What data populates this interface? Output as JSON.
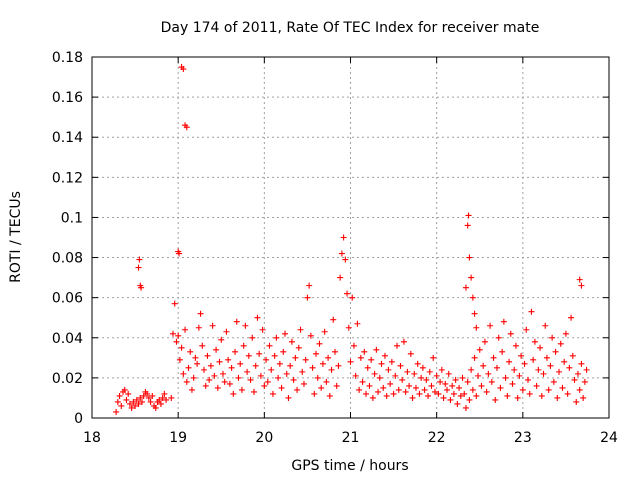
{
  "chart_data": {
    "type": "scatter",
    "title": "Day 174 of 2011, Rate Of TEC Index for receiver mate",
    "xlabel": "GPS time / hours",
    "ylabel": "ROTI / TECUs",
    "xlim": [
      18,
      24
    ],
    "ylim": [
      0,
      0.18
    ],
    "x_ticks": [
      18,
      19,
      20,
      21,
      22,
      23,
      24
    ],
    "x_tick_labels": [
      "18",
      "19",
      "20",
      "21",
      "22",
      "23",
      "24"
    ],
    "y_ticks": [
      0,
      0.02,
      0.04,
      0.06,
      0.08,
      0.1,
      0.12,
      0.14,
      0.16,
      0.18
    ],
    "y_tick_labels": [
      "0",
      "0.02",
      "0.04",
      "0.06",
      "0.08",
      "0.1",
      "0.12",
      "0.14",
      "0.16",
      "0.18"
    ],
    "grid": true,
    "marker": "+",
    "marker_color": "#ff0000",
    "series": [
      {
        "name": "ROTI",
        "points": [
          [
            18.28,
            0.003
          ],
          [
            18.3,
            0.008
          ],
          [
            18.32,
            0.011
          ],
          [
            18.34,
            0.006
          ],
          [
            18.36,
            0.013
          ],
          [
            18.38,
            0.014
          ],
          [
            18.4,
            0.009
          ],
          [
            18.42,
            0.012
          ],
          [
            18.44,
            0.007
          ],
          [
            18.46,
            0.005
          ],
          [
            18.48,
            0.008
          ],
          [
            18.5,
            0.006
          ],
          [
            18.52,
            0.009
          ],
          [
            18.54,
            0.007
          ],
          [
            18.56,
            0.01
          ],
          [
            18.58,
            0.008
          ],
          [
            18.6,
            0.011
          ],
          [
            18.62,
            0.013
          ],
          [
            18.64,
            0.012
          ],
          [
            18.66,
            0.01
          ],
          [
            18.68,
            0.008
          ],
          [
            18.7,
            0.011
          ],
          [
            18.72,
            0.006
          ],
          [
            18.74,
            0.005
          ],
          [
            18.76,
            0.008
          ],
          [
            18.78,
            0.009
          ],
          [
            18.8,
            0.007
          ],
          [
            18.82,
            0.01
          ],
          [
            18.84,
            0.012
          ],
          [
            18.86,
            0.009
          ],
          [
            18.54,
            0.075
          ],
          [
            18.55,
            0.079
          ],
          [
            18.56,
            0.066
          ],
          [
            18.57,
            0.065
          ],
          [
            18.92,
            0.01
          ],
          [
            18.94,
            0.042
          ],
          [
            18.96,
            0.057
          ],
          [
            18.98,
            0.038
          ],
          [
            19.0,
            0.041
          ],
          [
            19.02,
            0.029
          ],
          [
            19.04,
            0.035
          ],
          [
            19.06,
            0.022
          ],
          [
            19.08,
            0.044
          ],
          [
            19.1,
            0.018
          ],
          [
            19.12,
            0.025
          ],
          [
            19.14,
            0.033
          ],
          [
            19.16,
            0.014
          ],
          [
            19.18,
            0.02
          ],
          [
            19.2,
            0.03
          ],
          [
            19.22,
            0.027
          ],
          [
            19.24,
            0.045
          ],
          [
            19.26,
            0.052
          ],
          [
            19.28,
            0.036
          ],
          [
            19.3,
            0.024
          ],
          [
            19.32,
            0.016
          ],
          [
            19.34,
            0.031
          ],
          [
            19.36,
            0.019
          ],
          [
            19.38,
            0.026
          ],
          [
            19.4,
            0.046
          ],
          [
            19.42,
            0.021
          ],
          [
            19.44,
            0.034
          ],
          [
            19.46,
            0.015
          ],
          [
            19.48,
            0.028
          ],
          [
            19.5,
            0.039
          ],
          [
            19.52,
            0.022
          ],
          [
            19.54,
            0.018
          ],
          [
            19.56,
            0.043
          ],
          [
            19.58,
            0.029
          ],
          [
            19.6,
            0.017
          ],
          [
            19.62,
            0.025
          ],
          [
            19.64,
            0.012
          ],
          [
            19.66,
            0.033
          ],
          [
            19.68,
            0.048
          ],
          [
            19.7,
            0.02
          ],
          [
            19.72,
            0.027
          ],
          [
            19.74,
            0.014
          ],
          [
            19.76,
            0.036
          ],
          [
            19.78,
            0.046
          ],
          [
            19.8,
            0.023
          ],
          [
            19.82,
            0.031
          ],
          [
            19.84,
            0.019
          ],
          [
            19.86,
            0.04
          ],
          [
            19.88,
            0.013
          ],
          [
            19.9,
            0.026
          ],
          [
            19.92,
            0.05
          ],
          [
            19.94,
            0.032
          ],
          [
            19.96,
            0.021
          ],
          [
            19.98,
            0.044
          ],
          [
            20.0,
            0.016
          ],
          [
            19.0,
            0.083
          ],
          [
            19.01,
            0.082
          ],
          [
            19.04,
            0.175
          ],
          [
            19.06,
            0.174
          ],
          [
            19.08,
            0.146
          ],
          [
            19.1,
            0.145
          ],
          [
            20.02,
            0.029
          ],
          [
            20.04,
            0.018
          ],
          [
            20.06,
            0.036
          ],
          [
            20.08,
            0.024
          ],
          [
            20.1,
            0.012
          ],
          [
            20.12,
            0.031
          ],
          [
            20.14,
            0.04
          ],
          [
            20.16,
            0.02
          ],
          [
            20.18,
            0.027
          ],
          [
            20.2,
            0.015
          ],
          [
            20.22,
            0.033
          ],
          [
            20.24,
            0.042
          ],
          [
            20.26,
            0.022
          ],
          [
            20.28,
            0.01
          ],
          [
            20.3,
            0.026
          ],
          [
            20.32,
            0.038
          ],
          [
            20.34,
            0.019
          ],
          [
            20.36,
            0.03
          ],
          [
            20.38,
            0.014
          ],
          [
            20.4,
            0.035
          ],
          [
            20.42,
            0.044
          ],
          [
            20.44,
            0.023
          ],
          [
            20.46,
            0.017
          ],
          [
            20.48,
            0.029
          ],
          [
            20.5,
            0.06
          ],
          [
            20.52,
            0.066
          ],
          [
            20.54,
            0.041
          ],
          [
            20.56,
            0.025
          ],
          [
            20.58,
            0.012
          ],
          [
            20.6,
            0.032
          ],
          [
            20.62,
            0.02
          ],
          [
            20.64,
            0.037
          ],
          [
            20.66,
            0.015
          ],
          [
            20.68,
            0.027
          ],
          [
            20.7,
            0.043
          ],
          [
            20.72,
            0.018
          ],
          [
            20.74,
            0.03
          ],
          [
            20.76,
            0.011
          ],
          [
            20.78,
            0.024
          ],
          [
            20.8,
            0.049
          ],
          [
            20.82,
            0.033
          ],
          [
            20.84,
            0.016
          ],
          [
            20.86,
            0.026
          ],
          [
            20.88,
            0.07
          ],
          [
            20.9,
            0.082
          ],
          [
            20.92,
            0.09
          ],
          [
            20.94,
            0.079
          ],
          [
            20.96,
            0.062
          ],
          [
            20.98,
            0.045
          ],
          [
            21.0,
            0.028
          ],
          [
            21.02,
            0.06
          ],
          [
            21.04,
            0.036
          ],
          [
            21.06,
            0.021
          ],
          [
            21.08,
            0.047
          ],
          [
            21.1,
            0.014
          ],
          [
            21.12,
            0.03
          ],
          [
            21.14,
            0.018
          ],
          [
            21.16,
            0.033
          ],
          [
            21.18,
            0.012
          ],
          [
            21.2,
            0.025
          ],
          [
            21.22,
            0.016
          ],
          [
            21.24,
            0.029
          ],
          [
            21.26,
            0.01
          ],
          [
            21.28,
            0.022
          ],
          [
            21.3,
            0.034
          ],
          [
            21.32,
            0.013
          ],
          [
            21.34,
            0.02
          ],
          [
            21.36,
            0.027
          ],
          [
            21.38,
            0.015
          ],
          [
            21.4,
            0.031
          ],
          [
            21.42,
            0.011
          ],
          [
            21.44,
            0.024
          ],
          [
            21.46,
            0.017
          ],
          [
            21.48,
            0.028
          ],
          [
            21.5,
            0.012
          ],
          [
            21.52,
            0.021
          ],
          [
            21.54,
            0.036
          ],
          [
            21.56,
            0.014
          ],
          [
            21.58,
            0.026
          ],
          [
            21.6,
            0.019
          ],
          [
            21.62,
            0.038
          ],
          [
            21.64,
            0.013
          ],
          [
            21.66,
            0.023
          ],
          [
            21.68,
            0.016
          ],
          [
            21.7,
            0.032
          ],
          [
            21.72,
            0.01
          ],
          [
            21.74,
            0.022
          ],
          [
            21.76,
            0.015
          ],
          [
            21.78,
            0.027
          ],
          [
            21.8,
            0.012
          ],
          [
            21.82,
            0.02
          ],
          [
            21.84,
            0.025
          ],
          [
            21.86,
            0.014
          ],
          [
            21.88,
            0.019
          ],
          [
            21.9,
            0.011
          ],
          [
            21.92,
            0.023
          ],
          [
            21.94,
            0.016
          ],
          [
            21.96,
            0.03
          ],
          [
            21.98,
            0.013
          ],
          [
            22.0,
            0.021
          ],
          [
            22.02,
            0.012
          ],
          [
            22.04,
            0.018
          ],
          [
            22.06,
            0.024
          ],
          [
            22.08,
            0.01
          ],
          [
            22.1,
            0.017
          ],
          [
            22.12,
            0.014
          ],
          [
            22.14,
            0.022
          ],
          [
            22.16,
            0.009
          ],
          [
            22.18,
            0.016
          ],
          [
            22.2,
            0.012
          ],
          [
            22.22,
            0.019
          ],
          [
            22.24,
            0.007
          ],
          [
            22.26,
            0.015
          ],
          [
            22.28,
            0.011
          ],
          [
            22.3,
            0.02
          ],
          [
            22.34,
            0.065
          ],
          [
            22.36,
            0.096
          ],
          [
            22.37,
            0.101
          ],
          [
            22.38,
            0.08
          ],
          [
            22.4,
            0.07
          ],
          [
            22.42,
            0.06
          ],
          [
            22.44,
            0.052
          ],
          [
            22.46,
            0.045
          ],
          [
            22.32,
            0.012
          ],
          [
            22.34,
            0.005
          ],
          [
            22.36,
            0.018
          ],
          [
            22.38,
            0.009
          ],
          [
            22.4,
            0.024
          ],
          [
            22.42,
            0.014
          ],
          [
            22.44,
            0.03
          ],
          [
            22.46,
            0.011
          ],
          [
            22.48,
            0.021
          ],
          [
            22.5,
            0.034
          ],
          [
            22.52,
            0.016
          ],
          [
            22.54,
            0.026
          ],
          [
            22.56,
            0.038
          ],
          [
            22.58,
            0.013
          ],
          [
            22.6,
            0.022
          ],
          [
            22.62,
            0.046
          ],
          [
            22.64,
            0.018
          ],
          [
            22.66,
            0.03
          ],
          [
            22.68,
            0.009
          ],
          [
            22.7,
            0.025
          ],
          [
            22.72,
            0.04
          ],
          [
            22.74,
            0.015
          ],
          [
            22.76,
            0.033
          ],
          [
            22.78,
            0.048
          ],
          [
            22.8,
            0.02
          ],
          [
            22.82,
            0.011
          ],
          [
            22.84,
            0.028
          ],
          [
            22.86,
            0.042
          ],
          [
            22.88,
            0.017
          ],
          [
            22.9,
            0.024
          ],
          [
            22.92,
            0.036
          ],
          [
            22.94,
            0.01
          ],
          [
            22.96,
            0.021
          ],
          [
            22.98,
            0.031
          ],
          [
            23.0,
            0.014
          ],
          [
            23.02,
            0.027
          ],
          [
            23.04,
            0.044
          ],
          [
            23.06,
            0.019
          ],
          [
            23.08,
            0.012
          ],
          [
            23.1,
            0.053
          ],
          [
            23.12,
            0.029
          ],
          [
            23.14,
            0.038
          ],
          [
            23.16,
            0.016
          ],
          [
            23.18,
            0.024
          ],
          [
            23.2,
            0.035
          ],
          [
            23.22,
            0.011
          ],
          [
            23.24,
            0.022
          ],
          [
            23.26,
            0.046
          ],
          [
            23.28,
            0.03
          ],
          [
            23.3,
            0.014
          ],
          [
            23.32,
            0.026
          ],
          [
            23.34,
            0.04
          ],
          [
            23.36,
            0.018
          ],
          [
            23.38,
            0.033
          ],
          [
            23.4,
            0.01
          ],
          [
            23.42,
            0.023
          ],
          [
            23.44,
            0.037
          ],
          [
            23.46,
            0.015
          ],
          [
            23.48,
            0.028
          ],
          [
            23.5,
            0.042
          ],
          [
            23.52,
            0.012
          ],
          [
            23.54,
            0.025
          ],
          [
            23.56,
            0.05
          ],
          [
            23.58,
            0.031
          ],
          [
            23.6,
            0.019
          ],
          [
            23.62,
            0.008
          ],
          [
            23.64,
            0.022
          ],
          [
            23.66,
            0.014
          ],
          [
            23.68,
            0.027
          ],
          [
            23.7,
            0.01
          ],
          [
            23.72,
            0.018
          ],
          [
            23.74,
            0.024
          ],
          [
            23.66,
            0.069
          ],
          [
            23.68,
            0.066
          ]
        ]
      }
    ]
  }
}
